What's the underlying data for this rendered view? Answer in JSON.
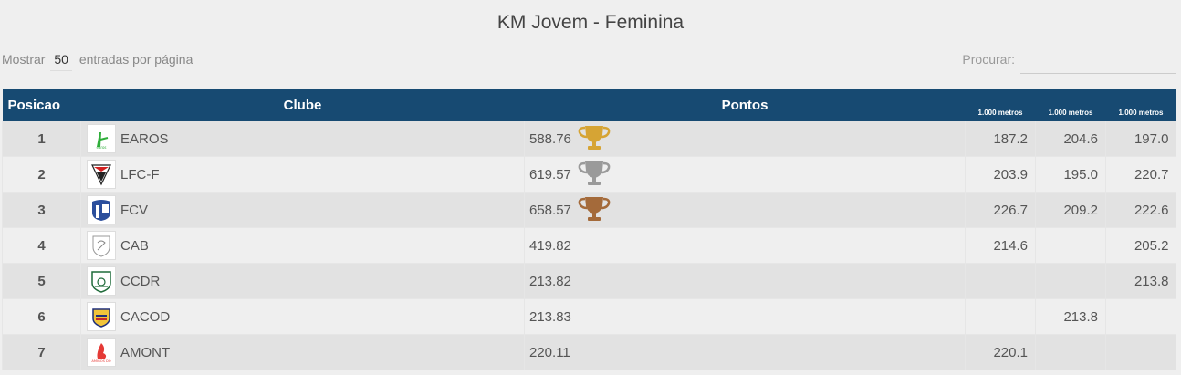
{
  "page": {
    "title": "KM Jovem - Feminina"
  },
  "controls": {
    "length_prefix": "Mostrar",
    "length_value": "50",
    "length_suffix": "entradas por página",
    "search_label": "Procurar:",
    "search_value": ""
  },
  "table": {
    "headers": {
      "position": "Posicao",
      "club": "Clube",
      "points": "Pontos",
      "dist1": "1.000 metros",
      "dist2": "1.000 metros",
      "dist3": "1.000 metros"
    },
    "rows": [
      {
        "pos": "1",
        "club": "EAROS",
        "points": "588.76",
        "trophy": "gold-trophy-icon",
        "d1": "187.2",
        "d2": "204.6",
        "d3": "197.0",
        "logo": "earos-logo"
      },
      {
        "pos": "2",
        "club": "LFC-F",
        "points": "619.57",
        "trophy": "silver-trophy-icon",
        "d1": "203.9",
        "d2": "195.0",
        "d3": "220.7",
        "logo": "lfcf-logo"
      },
      {
        "pos": "3",
        "club": "FCV",
        "points": "658.57",
        "trophy": "bronze-trophy-icon",
        "d1": "226.7",
        "d2": "209.2",
        "d3": "222.6",
        "logo": "fcv-logo"
      },
      {
        "pos": "4",
        "club": "CAB",
        "points": "419.82",
        "trophy": "",
        "d1": "214.6",
        "d2": "",
        "d3": "205.2",
        "logo": "cab-logo"
      },
      {
        "pos": "5",
        "club": "CCDR",
        "points": "213.82",
        "trophy": "",
        "d1": "",
        "d2": "",
        "d3": "213.8",
        "logo": "ccdr-logo"
      },
      {
        "pos": "6",
        "club": "CACOD",
        "points": "213.83",
        "trophy": "",
        "d1": "",
        "d2": "213.8",
        "d3": "",
        "logo": "cacod-logo"
      },
      {
        "pos": "7",
        "club": "AMONT",
        "points": "220.11",
        "trophy": "",
        "d1": "220.1",
        "d2": "",
        "d3": "",
        "logo": "amont-logo"
      }
    ]
  },
  "colors": {
    "header_bg": "#174a72",
    "gold": "#d6a434",
    "silver": "#9a9a9a",
    "bronze": "#a46a3a",
    "score_link": "#2e3f99"
  }
}
